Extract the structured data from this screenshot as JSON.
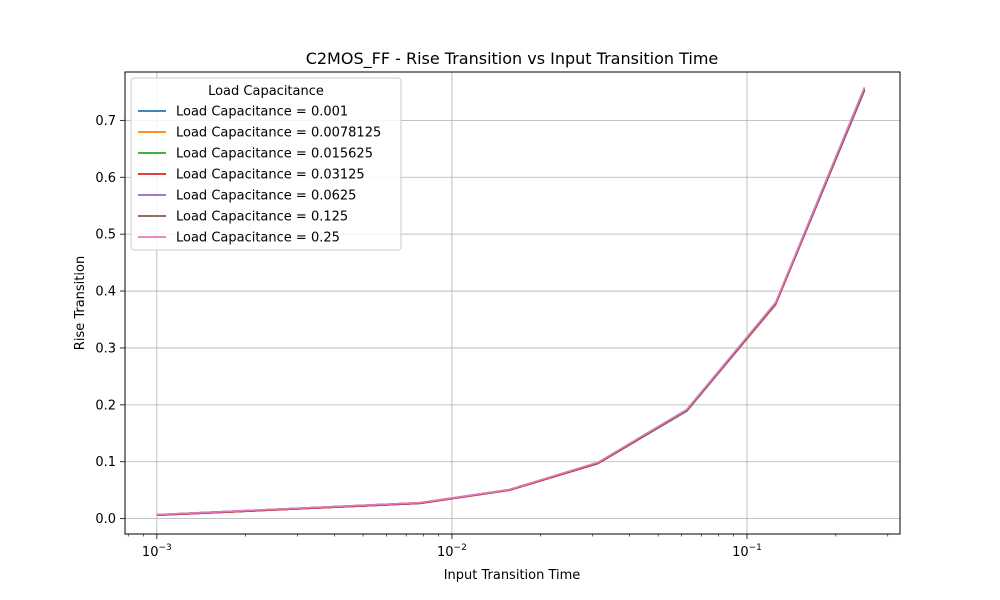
{
  "chart_data": {
    "type": "line",
    "title": "C2MOS_FF - Rise Transition vs Input Transition Time",
    "xlabel": "Input Transition Time",
    "ylabel": "Rise Transition",
    "xscale": "log",
    "xlim": [
      0.00078,
      0.33
    ],
    "ylim": [
      -0.027,
      0.785
    ],
    "x": [
      0.001,
      0.0078125,
      0.015625,
      0.03125,
      0.0625,
      0.125,
      0.25
    ],
    "x_ticks": [
      {
        "value": 0.001,
        "base": "10",
        "exp": "−3"
      },
      {
        "value": 0.01,
        "base": "10",
        "exp": "−2"
      },
      {
        "value": 0.1,
        "base": "10",
        "exp": "−1"
      }
    ],
    "y_ticks": [
      {
        "value": 0.0,
        "label": "0.0"
      },
      {
        "value": 0.1,
        "label": "0.1"
      },
      {
        "value": 0.2,
        "label": "0.2"
      },
      {
        "value": 0.3,
        "label": "0.3"
      },
      {
        "value": 0.4,
        "label": "0.4"
      },
      {
        "value": 0.5,
        "label": "0.5"
      },
      {
        "value": 0.6,
        "label": "0.6"
      },
      {
        "value": 0.7,
        "label": "0.7"
      }
    ],
    "grid": true,
    "legend": {
      "title": "Load Capacitance",
      "placement": "top-left"
    },
    "series": [
      {
        "name": "Load Capacitance = 0.001",
        "color": "#1f77b4",
        "values": [
          0.006,
          0.027,
          0.05,
          0.097,
          0.189,
          0.376,
          0.752
        ]
      },
      {
        "name": "Load Capacitance = 0.0078125",
        "color": "#ff7f0e",
        "values": [
          0.006,
          0.027,
          0.05,
          0.097,
          0.189,
          0.376,
          0.753
        ]
      },
      {
        "name": "Load Capacitance = 0.015625",
        "color": "#2ca02c",
        "values": [
          0.006,
          0.027,
          0.05,
          0.097,
          0.189,
          0.377,
          0.753
        ]
      },
      {
        "name": "Load Capacitance = 0.03125",
        "color": "#d62728",
        "values": [
          0.006,
          0.027,
          0.05,
          0.097,
          0.19,
          0.377,
          0.754
        ]
      },
      {
        "name": "Load Capacitance = 0.0625",
        "color": "#9467bd",
        "values": [
          0.007,
          0.028,
          0.051,
          0.098,
          0.19,
          0.378,
          0.755
        ]
      },
      {
        "name": "Load Capacitance = 0.125",
        "color": "#8c564b",
        "values": [
          0.007,
          0.028,
          0.051,
          0.098,
          0.191,
          0.379,
          0.756
        ]
      },
      {
        "name": "Load Capacitance = 0.25",
        "color": "#e377c2",
        "values": [
          0.007,
          0.028,
          0.051,
          0.099,
          0.192,
          0.38,
          0.758
        ]
      }
    ]
  }
}
